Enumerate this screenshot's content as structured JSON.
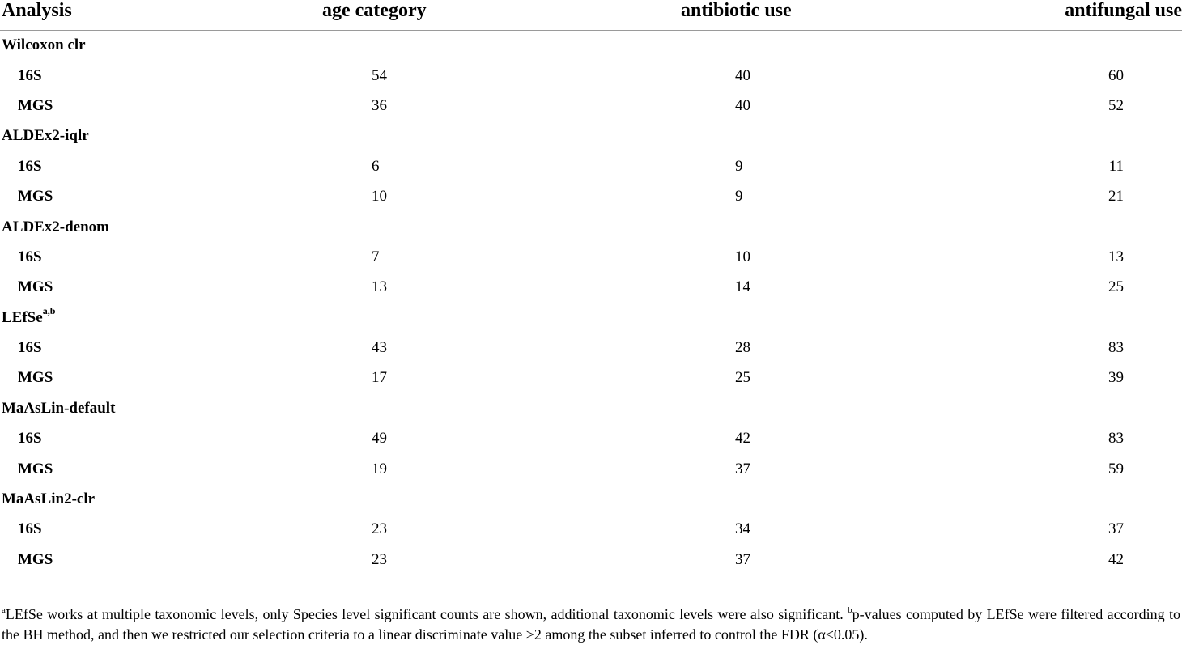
{
  "table": {
    "headers": [
      "Analysis",
      "age category",
      "antibiotic use",
      "antifungal use"
    ],
    "groups": [
      {
        "name": "Wilcoxon clr",
        "sup": "",
        "rows": [
          {
            "label": "16S",
            "values": [
              "54",
              "40",
              "60"
            ]
          },
          {
            "label": "MGS",
            "values": [
              "36",
              "40",
              "52"
            ]
          }
        ]
      },
      {
        "name": "ALDEx2-iqlr",
        "sup": "",
        "rows": [
          {
            "label": "16S",
            "values": [
              "6",
              "9",
              "11"
            ]
          },
          {
            "label": "MGS",
            "values": [
              "10",
              "9",
              "21"
            ]
          }
        ]
      },
      {
        "name": "ALDEx2-denom",
        "sup": "",
        "rows": [
          {
            "label": "16S",
            "values": [
              "7",
              "10",
              "13"
            ]
          },
          {
            "label": "MGS",
            "values": [
              "13",
              "14",
              "25"
            ]
          }
        ]
      },
      {
        "name": "LEfSe",
        "sup": "a,b",
        "rows": [
          {
            "label": "16S",
            "values": [
              "43",
              "28",
              "83"
            ]
          },
          {
            "label": "MGS",
            "values": [
              "17",
              "25",
              "39"
            ]
          }
        ]
      },
      {
        "name": "MaAsLin-default",
        "sup": "",
        "rows": [
          {
            "label": "16S",
            "values": [
              "49",
              "42",
              "83"
            ]
          },
          {
            "label": "MGS",
            "values": [
              "19",
              "37",
              "59"
            ]
          }
        ]
      },
      {
        "name": "MaAsLin2-clr",
        "sup": "",
        "rows": [
          {
            "label": "16S",
            "values": [
              "23",
              "34",
              "37"
            ]
          },
          {
            "label": "MGS",
            "values": [
              "23",
              "37",
              "42"
            ]
          }
        ]
      }
    ]
  },
  "footnote": {
    "a_mark": "a",
    "a_text": "LEfSe works at multiple taxonomic levels, only Species level significant counts are shown, additional taxonomic levels were also significant. ",
    "b_mark": "b",
    "b_text": "p-values computed by LEfSe were filtered according to the BH method, and then we restricted our selection criteria to a linear discriminate value >2 among the subset inferred to control the FDR (α<0.05)."
  }
}
